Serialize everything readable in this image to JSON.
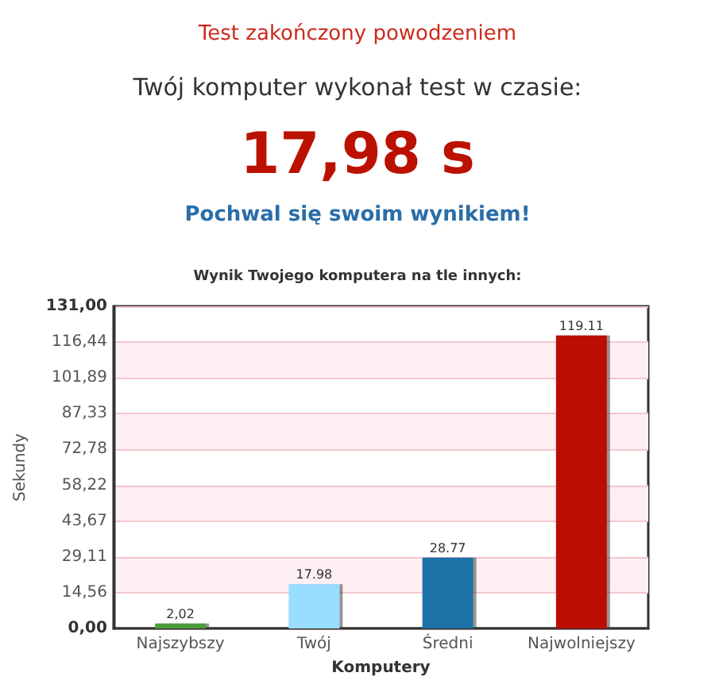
{
  "chart_data": {
    "type": "bar",
    "title": "Wynik Twojego komputera na tle innych:",
    "annotations": [
      "Test zakończony powodzeniem",
      "Twój komputer wykonał test w czasie:",
      "17,98 s",
      "Pochwal się swoim wynikiem!"
    ],
    "xlabel": "Komputery",
    "ylabel": "Sekundy",
    "categories": [
      "Najszybszy",
      "Twój",
      "Średni",
      "Najwolniejszy"
    ],
    "values": [
      2.02,
      17.98,
      28.77,
      119.11
    ],
    "colors": [
      "#4c9e3a",
      "#99ddff",
      "#1b72a6",
      "#bb1100"
    ],
    "value_labels": [
      "2,02",
      "17.98",
      "28.77",
      "119.11"
    ],
    "ylim": [
      0,
      131
    ],
    "yticks": [
      {
        "value": 0,
        "label": "0,00"
      },
      {
        "value": 14.56,
        "label": "14,56"
      },
      {
        "value": 29.11,
        "label": "29,11"
      },
      {
        "value": 43.67,
        "label": "43,67"
      },
      {
        "value": 58.22,
        "label": "58,22"
      },
      {
        "value": 72.78,
        "label": "72,78"
      },
      {
        "value": 87.33,
        "label": "87,33"
      },
      {
        "value": 101.89,
        "label": "101,89"
      },
      {
        "value": 116.44,
        "label": "116,44"
      },
      {
        "value": 131,
        "label": "131,00"
      }
    ],
    "grid": "y"
  }
}
